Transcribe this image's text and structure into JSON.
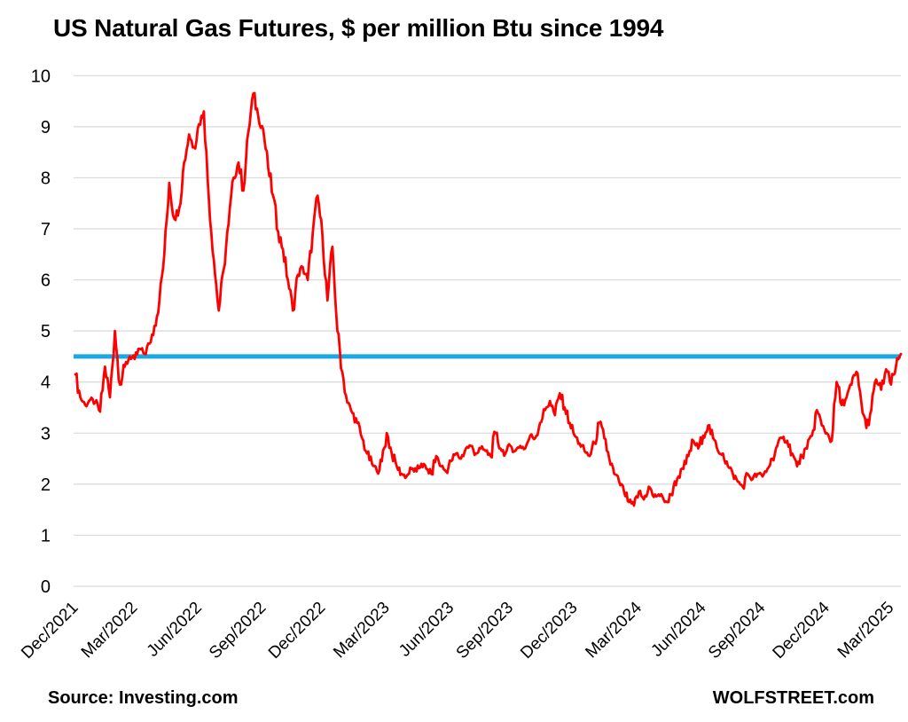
{
  "title": "US Natural Gas Futures, $ per million Btu since 1994",
  "footer": {
    "source": "Source: Investing.com",
    "site": "WOLFSTREET.com"
  },
  "colors": {
    "series": "#FF0000",
    "reference_line": "#1BA8E2",
    "gridline": "#D9D9D9",
    "text": "#000000",
    "background": "#FFFFFF"
  },
  "chart_data": {
    "type": "line",
    "title": "US Natural Gas Futures, $ per million Btu since 1994",
    "xlabel": "",
    "ylabel": "",
    "ylim": [
      0,
      10
    ],
    "grid": "horizontal",
    "legend": "none",
    "y_tick_labels": [
      "0",
      "1",
      "2",
      "3",
      "4",
      "5",
      "6",
      "7",
      "8",
      "9",
      "10"
    ],
    "x_tick_labels": [
      "Dec/2021",
      "Mar/2022",
      "Jun/2022",
      "Sep/2022",
      "Dec/2022",
      "Mar/2023",
      "Jun/2023",
      "Sep/2023",
      "Dec/2023",
      "Mar/2024",
      "Jun/2024",
      "Sep/2024",
      "Dec/2024",
      "Mar/2025"
    ],
    "x_tick_indices": [
      0,
      12,
      25,
      38,
      50,
      63,
      76,
      88,
      101,
      114,
      127,
      139,
      152,
      165
    ],
    "reference_line": {
      "value": 4.5,
      "color": "#1BA8E2"
    },
    "series": [
      {
        "name": "US Natural Gas Futures price",
        "color": "#FF0000",
        "sampling": "approx-weekly Dec-2021 to mid-Mar-2025",
        "values": [
          4.15,
          3.7,
          3.55,
          3.65,
          3.6,
          3.42,
          4.3,
          3.7,
          5.0,
          3.95,
          4.3,
          4.5,
          4.45,
          4.65,
          4.55,
          4.75,
          5.1,
          5.6,
          6.5,
          7.9,
          7.2,
          7.4,
          8.3,
          8.85,
          8.6,
          9.05,
          9.3,
          7.6,
          6.4,
          5.4,
          6.2,
          7.1,
          8.0,
          8.3,
          7.75,
          8.9,
          9.65,
          9.2,
          8.95,
          8.2,
          7.65,
          6.95,
          6.6,
          6.0,
          5.4,
          6.1,
          6.25,
          6.0,
          6.9,
          7.65,
          6.85,
          5.6,
          6.65,
          5.0,
          4.2,
          3.6,
          3.4,
          3.2,
          2.9,
          2.6,
          2.4,
          2.25,
          2.45,
          3.0,
          2.6,
          2.35,
          2.2,
          2.15,
          2.3,
          2.25,
          2.4,
          2.3,
          2.2,
          2.55,
          2.35,
          2.25,
          2.45,
          2.6,
          2.5,
          2.7,
          2.75,
          2.6,
          2.7,
          2.65,
          2.55,
          3.0,
          2.7,
          2.6,
          2.75,
          2.65,
          2.75,
          2.7,
          2.95,
          2.9,
          3.2,
          3.45,
          3.63,
          3.35,
          3.78,
          3.5,
          3.2,
          2.95,
          2.8,
          2.65,
          2.55,
          2.8,
          3.2,
          2.9,
          2.5,
          2.2,
          2.05,
          1.85,
          1.65,
          1.58,
          1.85,
          1.7,
          1.95,
          1.75,
          1.8,
          1.7,
          1.65,
          1.95,
          2.15,
          2.3,
          2.55,
          2.85,
          2.7,
          2.95,
          3.15,
          2.9,
          2.65,
          2.6,
          2.35,
          2.2,
          2.05,
          1.95,
          2.2,
          2.1,
          2.2,
          2.15,
          2.3,
          2.5,
          2.75,
          2.9,
          2.85,
          2.6,
          2.35,
          2.55,
          2.7,
          2.95,
          3.45,
          3.15,
          3.0,
          2.85,
          4.0,
          3.55,
          3.7,
          3.95,
          4.2,
          3.6,
          3.1,
          3.45,
          4.05,
          3.85,
          4.25,
          3.95,
          4.3,
          4.55
        ]
      }
    ]
  }
}
